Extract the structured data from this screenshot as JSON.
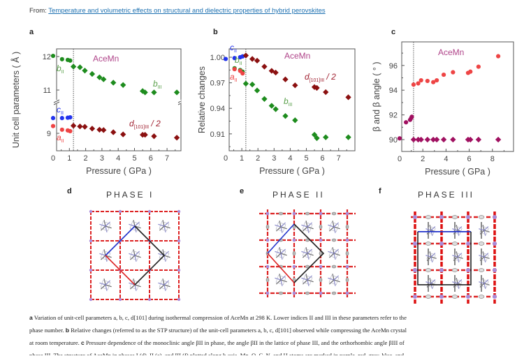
{
  "header": {
    "from_label": "From:",
    "article_link": "Temperature and volumetric effects on structural and dielectric properties of hybrid perovskites"
  },
  "panels": {
    "a": "a",
    "b": "b",
    "c": "c",
    "d": "d",
    "e": "e",
    "f": "f"
  },
  "phases": {
    "d_title": "PHASE I",
    "e_title": "PHASE II",
    "f_title": "PHASE III"
  },
  "colors": {
    "green": "#1e8c1e",
    "green_label": "#5aa04a",
    "blue": "#2233ee",
    "red": "#ee4444",
    "darkred": "#8b1010",
    "darkred_label": "#a02030",
    "magenta": "#a01060",
    "title_magenta": "#b0458a"
  },
  "chart_data": [
    {
      "type": "scatter",
      "panel": "a",
      "title": "AceMn",
      "xlabel": "Pressure ( GPa )",
      "ylabel": "Unit cell parameters ( Å )",
      "xlim": [
        0,
        7.7
      ],
      "xticks": [
        "0",
        "1",
        "2",
        "3",
        "4",
        "5",
        "6",
        "7"
      ],
      "yticks": [
        "9",
        "11",
        "12"
      ],
      "axis_break": "between 10.5 and 9.6 (broken y-axis)",
      "transition_line_x": 1.25,
      "series": [
        {
          "name": "b_II",
          "label_main": "b",
          "label_sub": "II",
          "color": "green",
          "marker": "circle",
          "x": [
            0.0,
            0.55,
            0.9,
            1.05
          ],
          "y": [
            12.02,
            11.92,
            11.9,
            11.88
          ]
        },
        {
          "name": "b_III",
          "label_main": "b",
          "label_sub": "III",
          "color": "green",
          "marker": "diamond",
          "x": [
            1.25,
            1.65,
            1.95,
            2.4,
            2.85,
            3.1,
            3.7,
            4.3,
            5.5,
            5.65,
            6.2,
            7.6
          ],
          "y": [
            11.7,
            11.68,
            11.58,
            11.48,
            11.38,
            11.32,
            11.22,
            11.15,
            10.97,
            10.93,
            10.93,
            10.93
          ]
        },
        {
          "name": "c_II",
          "label_main": "c",
          "label_sub": "II",
          "color": "blue",
          "marker": "circle",
          "x": [
            0.0,
            0.55,
            0.9,
            1.05
          ],
          "y": [
            9.42,
            9.42,
            9.43,
            9.44
          ]
        },
        {
          "name": "a_II",
          "label_main": "a",
          "label_sub": "II",
          "color": "red",
          "marker": "circle",
          "x": [
            0.0,
            0.55,
            0.9,
            1.05
          ],
          "y": [
            9.2,
            9.1,
            9.08,
            9.06
          ]
        },
        {
          "name": "d101_III_half",
          "label_main": "d",
          "label_sub": "[101]III",
          "label_suffix": " / 2",
          "color": "darkred",
          "marker": "diamond",
          "x": [
            1.25,
            1.65,
            1.95,
            2.4,
            2.85,
            3.1,
            3.7,
            4.3,
            5.5,
            5.65,
            6.2,
            7.6
          ],
          "y": [
            9.21,
            9.19,
            9.18,
            9.13,
            9.1,
            9.09,
            9.03,
            8.97,
            8.96,
            8.96,
            8.92,
            8.88
          ]
        }
      ]
    },
    {
      "type": "scatter",
      "panel": "b",
      "title": "AceMn",
      "xlabel": "Pressure ( GPa )",
      "ylabel": "Relative changes",
      "xlim": [
        0,
        7.7
      ],
      "ylim": [
        0.888,
        1.012
      ],
      "xticks": [
        "0",
        "1",
        "2",
        "3",
        "4",
        "5",
        "6",
        "7"
      ],
      "yticks": [
        "0.91",
        "0.94",
        "0.97",
        "1.00"
      ],
      "transition_line_x": 1.25,
      "series": [
        {
          "name": "c_II",
          "label_main": "c",
          "label_sub": "II",
          "color": "blue",
          "marker": "circle",
          "x": [
            0.0,
            0.55,
            0.9,
            1.05
          ],
          "y": [
            0.998,
            0.999,
            1.0,
            1.001
          ]
        },
        {
          "name": "b_II",
          "label_main": "b",
          "label_sub": "II",
          "color": "green",
          "marker": "circle",
          "x": [
            0.55,
            0.9,
            1.05
          ],
          "y": [
            0.987,
            0.985,
            0.983
          ]
        },
        {
          "name": "a_II",
          "label_main": "a",
          "label_sub": "II",
          "color": "red",
          "marker": "circle",
          "x": [
            0.55,
            0.9,
            1.05
          ],
          "y": [
            0.986,
            0.984,
            0.981
          ]
        },
        {
          "name": "d101_III_half",
          "label_main": "d",
          "label_sub": "[101]III",
          "label_suffix": " / 2",
          "color": "darkred",
          "marker": "diamond",
          "x": [
            1.25,
            1.65,
            1.95,
            2.4,
            2.85,
            3.1,
            3.7,
            4.3,
            5.5,
            5.65,
            6.2,
            7.6
          ],
          "y": [
            1.002,
            0.998,
            0.996,
            0.989,
            0.984,
            0.982,
            0.974,
            0.967,
            0.965,
            0.964,
            0.959,
            0.953
          ]
        },
        {
          "name": "b_III",
          "label_main": "b",
          "label_sub": "III",
          "color": "green",
          "marker": "diamond",
          "x": [
            1.25,
            1.65,
            1.95,
            2.4,
            2.85,
            3.1,
            3.7,
            4.3,
            5.5,
            5.65,
            6.2,
            7.6
          ],
          "y": [
            0.969,
            0.968,
            0.961,
            0.951,
            0.943,
            0.939,
            0.931,
            0.926,
            0.909,
            0.905,
            0.906,
            0.906
          ]
        }
      ]
    },
    {
      "type": "scatter",
      "panel": "c",
      "title": "AceMn",
      "xlabel": "Pressure ( GPa )",
      "ylabel": "β and β angle ( ° )",
      "xlim": [
        0,
        9.0
      ],
      "ylim": [
        89.0,
        97.9
      ],
      "xticks": [
        "0",
        "2",
        "4",
        "6",
        "8"
      ],
      "yticks": [
        "90",
        "92",
        "94",
        "96"
      ],
      "transition_line_x": 1.2,
      "series": [
        {
          "name": "beta_II",
          "color": "magenta",
          "marker": "circle",
          "x": [
            0.0,
            0.55,
            0.9,
            1.0,
            1.05
          ],
          "y": [
            90.1,
            91.4,
            91.6,
            91.75,
            91.85
          ]
        },
        {
          "name": "beta_III_lattice",
          "color": "red",
          "marker": "circle",
          "x": [
            1.2,
            1.6,
            1.85,
            2.4,
            2.9,
            3.2,
            3.8,
            4.6,
            5.9,
            6.1,
            6.8,
            8.5
          ],
          "y": [
            94.45,
            94.55,
            94.8,
            94.75,
            94.65,
            94.8,
            95.25,
            95.45,
            95.4,
            95.5,
            95.9,
            96.75
          ]
        },
        {
          "name": "beta_III_ortho",
          "color": "magenta",
          "marker": "diamond",
          "x": [
            1.2,
            1.6,
            1.85,
            2.4,
            2.9,
            3.2,
            3.8,
            4.6,
            5.9,
            6.1,
            6.8,
            8.5
          ],
          "y": [
            90.0,
            90.0,
            90.0,
            90.0,
            90.0,
            90.0,
            90.0,
            90.0,
            90.0,
            90.0,
            90.0,
            90.0
          ]
        }
      ]
    }
  ],
  "caption": {
    "line1_a": "a",
    "line1_text": " Variation of unit-cell parameters a, b, c, d[101] during isothermal compression of AceMn at 298 K. Lower indices II and III in these parameters refer to the",
    "line2_text_pre": "phase number. ",
    "line2_b": "b",
    "line2_text": " Relative changes (referred to as the STP structure) of the unit-cell parameters a, b, c, d[101] observed while compressing the AceMn crystal",
    "line3_text_pre": "at room temperature. ",
    "line3_c": "c",
    "line3_text": " Pressure dependence of the monoclinic angle βII in phase, the angle βII in the lattice of phase III, and the orthorhombic angle βIII of",
    "line4_text": "phase III. The structure of AceMn in phases I (d), II (e), and III (f) plotted along b axis. Mn, O, C, N, and H atoms are marked in purple, red, gray, blue, and"
  }
}
